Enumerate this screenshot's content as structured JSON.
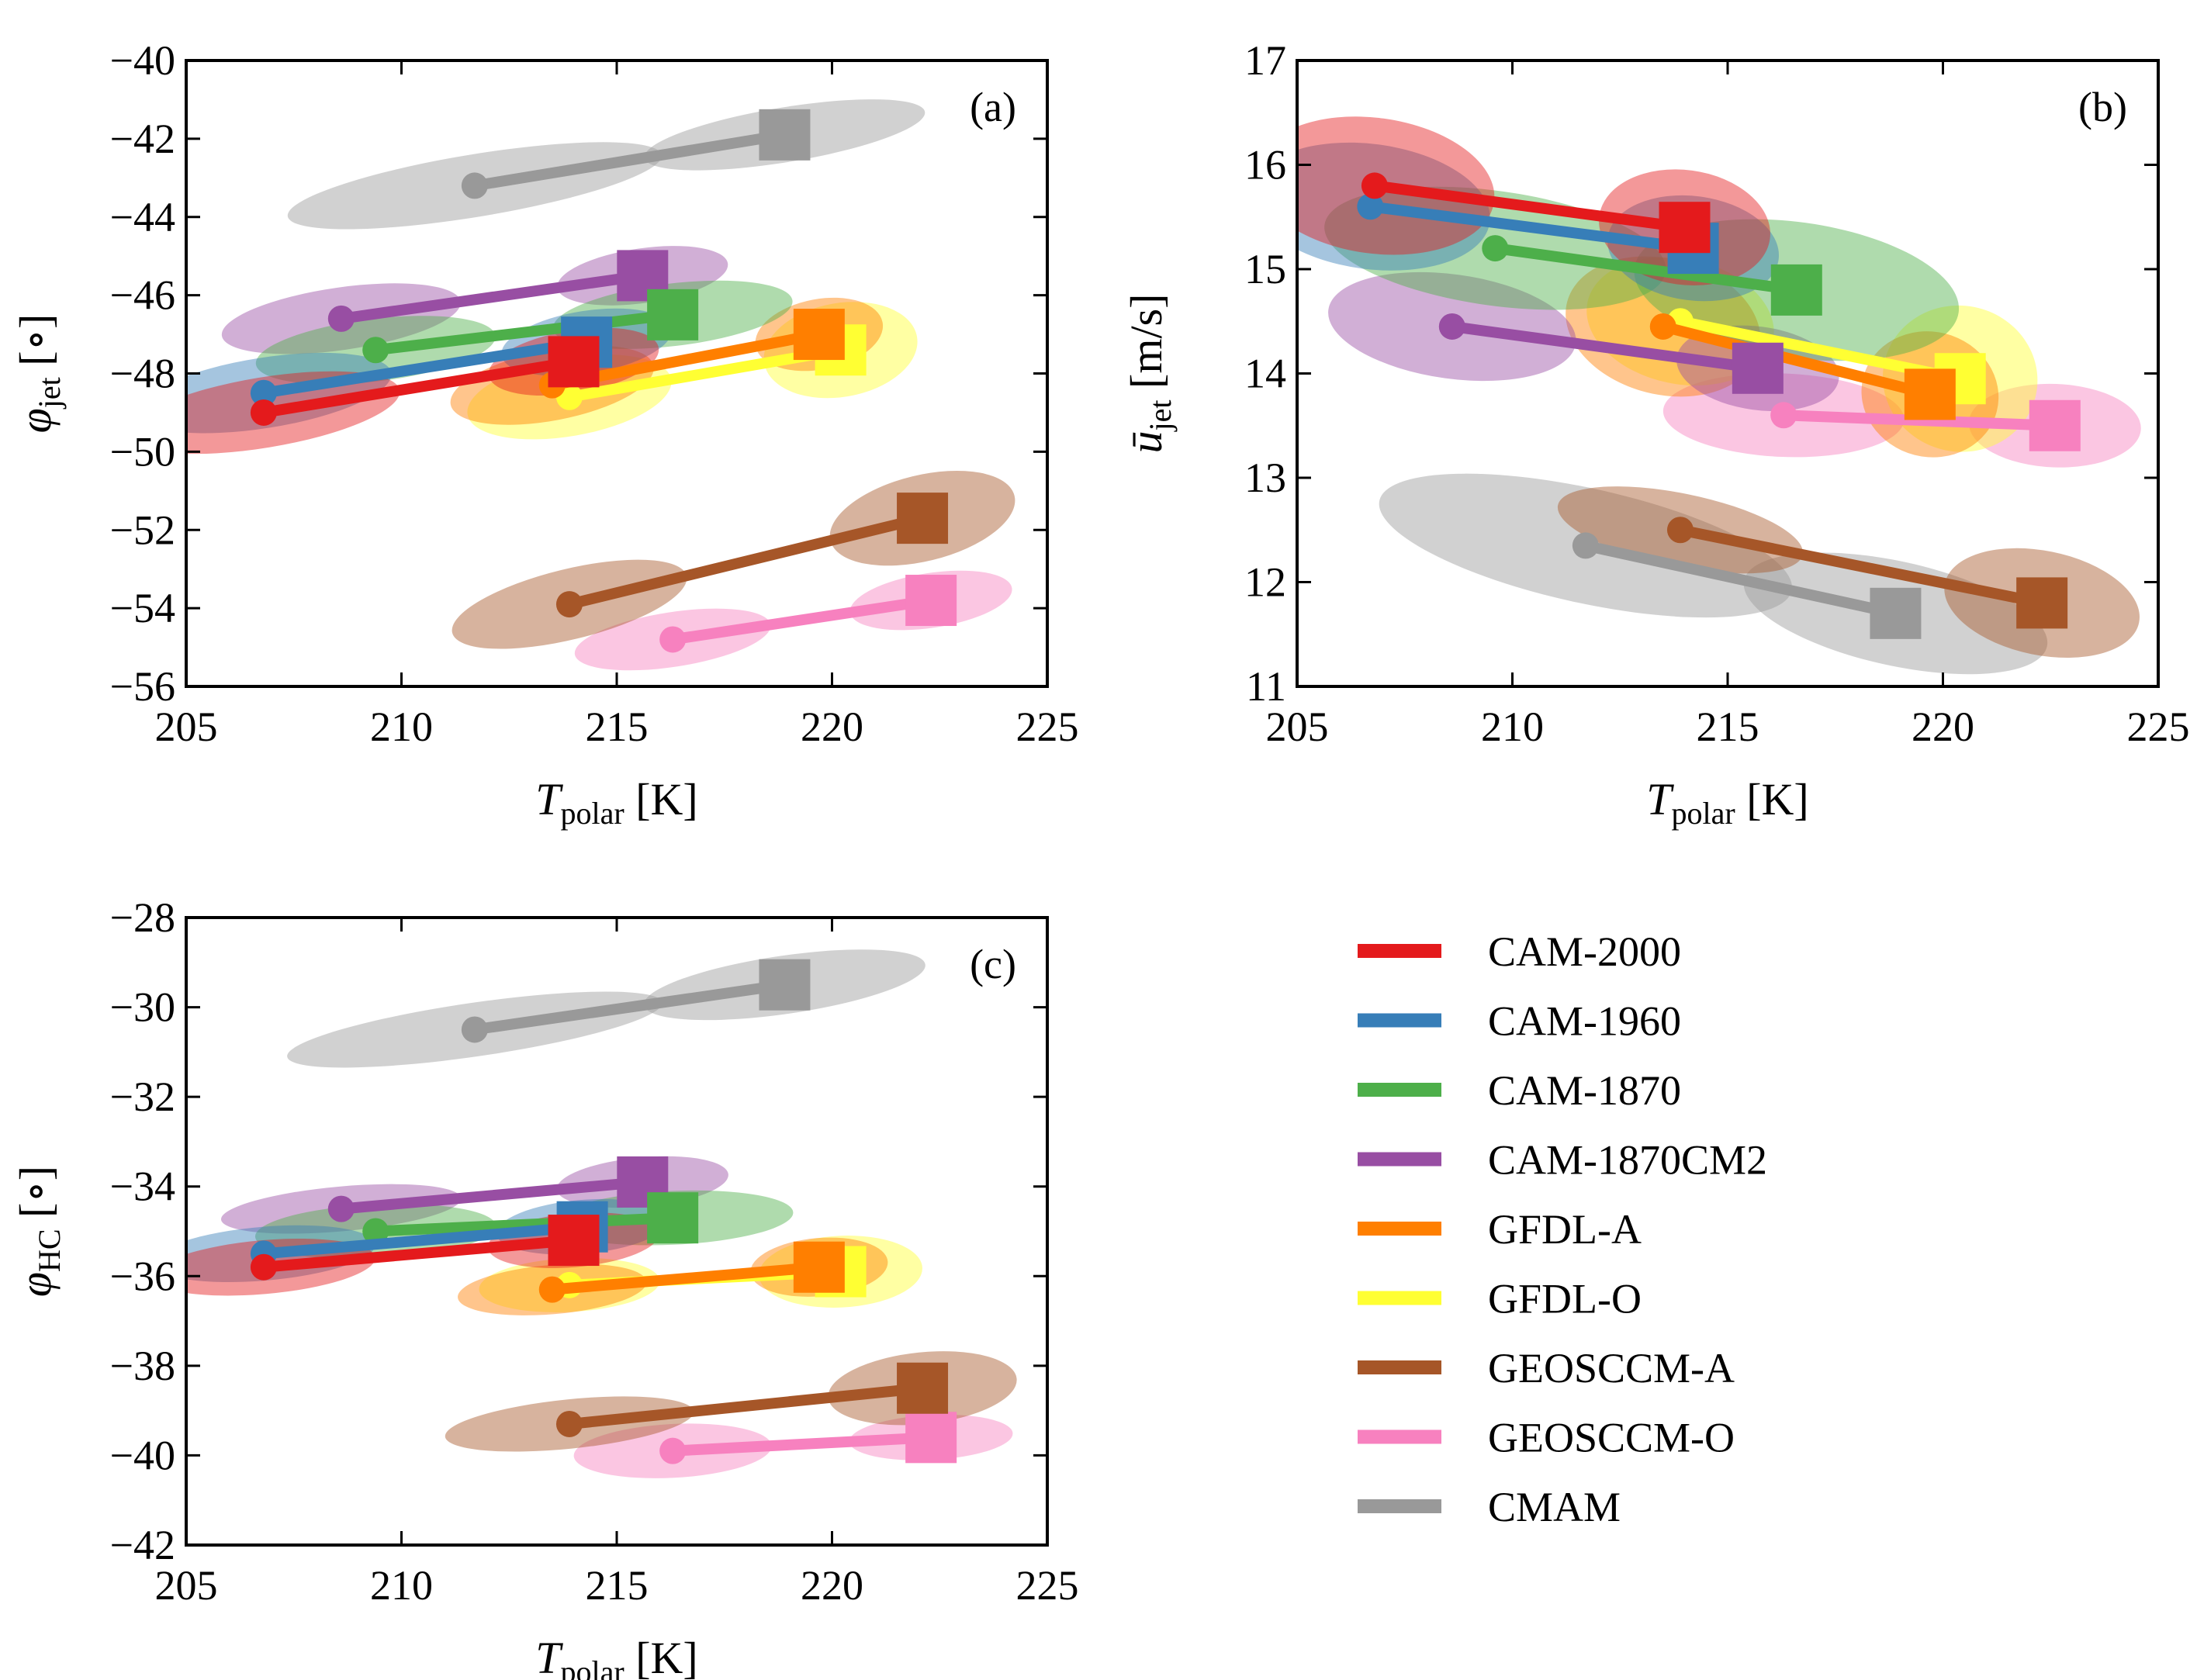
{
  "colors": {
    "CAM-2000": "#e41a1c",
    "CAM-1960": "#377eb8",
    "CAM-1870": "#4daf4a",
    "CAM-1870CM2": "#984ea3",
    "GFDL-A": "#ff7f00",
    "GFDL-O": "#ffff33",
    "GEOSCCM-A": "#a65628",
    "GEOSCCM-O": "#f781bf",
    "CMAM": "#999999"
  },
  "legend": {
    "entries": [
      "CAM-2000",
      "CAM-1960",
      "CAM-1870",
      "CAM-1870CM2",
      "GFDL-A",
      "GFDL-O",
      "GEOSCCM-A",
      "GEOSCCM-O",
      "CMAM"
    ]
  },
  "chart_data": [
    {
      "type": "scatter",
      "panel": "(a)",
      "xlabel": {
        "main": "T",
        "sub": "polar",
        "unit": "[K]"
      },
      "ylabel": {
        "main": "φ",
        "sub": "jet",
        "unit": "[∘]"
      },
      "xlim": [
        205,
        225
      ],
      "ylim": [
        -56,
        -40
      ],
      "xticks": [
        "205",
        "210",
        "215",
        "220",
        "225"
      ],
      "yticks": [
        "−56",
        "−54",
        "−52",
        "−50",
        "−48",
        "−46",
        "−44",
        "−42",
        "−40"
      ],
      "grid": false,
      "series": [
        {
          "name": "CAM-2000",
          "start": [
            206.8,
            -49.0
          ],
          "end": [
            214.0,
            -47.7
          ],
          "ellipse_start": [
            3.2,
            0.9
          ],
          "ellipse_end": [
            2.0,
            0.8
          ]
        },
        {
          "name": "CAM-1960",
          "start": [
            206.8,
            -48.5
          ],
          "end": [
            214.3,
            -47.2
          ],
          "ellipse_start": [
            3.0,
            0.9
          ],
          "ellipse_end": [
            2.0,
            0.8
          ]
        },
        {
          "name": "CAM-1870",
          "start": [
            209.4,
            -47.4
          ],
          "end": [
            216.3,
            -46.5
          ],
          "ellipse_start": [
            2.8,
            0.8
          ],
          "ellipse_end": [
            2.8,
            0.8
          ]
        },
        {
          "name": "CAM-1870CM2",
          "start": [
            208.6,
            -46.6
          ],
          "end": [
            215.6,
            -45.5
          ],
          "ellipse_start": [
            2.8,
            0.8
          ],
          "ellipse_end": [
            2.0,
            0.7
          ]
        },
        {
          "name": "GFDL-A",
          "start": [
            213.5,
            -48.3
          ],
          "end": [
            219.7,
            -47.0
          ],
          "ellipse_start": [
            2.4,
            0.9
          ],
          "ellipse_end": [
            1.5,
            0.9
          ]
        },
        {
          "name": "GFDL-O",
          "start": [
            213.9,
            -48.6
          ],
          "end": [
            220.2,
            -47.4
          ],
          "ellipse_start": [
            2.4,
            1.0
          ],
          "ellipse_end": [
            1.8,
            1.2
          ]
        },
        {
          "name": "GEOSCCM-A",
          "start": [
            213.9,
            -53.9
          ],
          "end": [
            222.1,
            -51.7
          ],
          "ellipse_start": [
            2.8,
            0.9
          ],
          "ellipse_end": [
            2.2,
            1.1
          ]
        },
        {
          "name": "GEOSCCM-O",
          "start": [
            216.3,
            -54.8
          ],
          "end": [
            222.3,
            -53.8
          ],
          "ellipse_start": [
            2.3,
            0.7
          ],
          "ellipse_end": [
            1.9,
            0.7
          ]
        },
        {
          "name": "CMAM",
          "start": [
            211.7,
            -43.2
          ],
          "end": [
            218.9,
            -41.9
          ],
          "ellipse_start": [
            4.4,
            0.8
          ],
          "ellipse_end": [
            3.3,
            0.7
          ]
        }
      ]
    },
    {
      "type": "scatter",
      "panel": "(b)",
      "xlabel": {
        "main": "T",
        "sub": "polar",
        "unit": "[K]"
      },
      "ylabel": {
        "main": "ū",
        "sub": "jet",
        "unit": "[m/s]"
      },
      "xlim": [
        205,
        225
      ],
      "ylim": [
        11,
        17
      ],
      "xticks": [
        "205",
        "210",
        "215",
        "220",
        "225"
      ],
      "yticks": [
        "11",
        "12",
        "13",
        "14",
        "15",
        "16",
        "17"
      ],
      "grid": false,
      "series": [
        {
          "name": "CAM-2000",
          "start": [
            206.8,
            15.8
          ],
          "end": [
            214.0,
            15.4
          ],
          "ellipse_start": [
            2.8,
            0.65
          ],
          "ellipse_end": [
            2.0,
            0.55
          ]
        },
        {
          "name": "CAM-1960",
          "start": [
            206.7,
            15.6
          ],
          "end": [
            214.2,
            15.2
          ],
          "ellipse_start": [
            2.8,
            0.6
          ],
          "ellipse_end": [
            2.0,
            0.5
          ]
        },
        {
          "name": "CAM-1870",
          "start": [
            209.6,
            15.2
          ],
          "end": [
            216.6,
            14.8
          ],
          "ellipse_start": [
            4.0,
            0.55
          ],
          "ellipse_end": [
            3.8,
            0.65
          ]
        },
        {
          "name": "CAM-1870CM2",
          "start": [
            208.6,
            14.45
          ],
          "end": [
            215.7,
            14.05
          ],
          "ellipse_start": [
            2.9,
            0.5
          ],
          "ellipse_end": [
            1.9,
            0.4
          ]
        },
        {
          "name": "GFDL-A",
          "start": [
            213.5,
            14.45
          ],
          "end": [
            219.7,
            13.8
          ],
          "ellipse_start": [
            2.3,
            0.65
          ],
          "ellipse_end": [
            1.6,
            0.6
          ]
        },
        {
          "name": "GFDL-O",
          "start": [
            213.9,
            14.5
          ],
          "end": [
            220.4,
            13.95
          ],
          "ellipse_start": [
            2.2,
            0.6
          ],
          "ellipse_end": [
            1.8,
            0.7
          ]
        },
        {
          "name": "GEOSCCM-A",
          "start": [
            213.9,
            12.5
          ],
          "end": [
            222.3,
            11.8
          ],
          "ellipse_start": [
            2.9,
            0.35
          ],
          "ellipse_end": [
            2.3,
            0.5
          ]
        },
        {
          "name": "GEOSCCM-O",
          "start": [
            216.3,
            13.6
          ],
          "end": [
            222.6,
            13.5
          ],
          "ellipse_start": [
            2.8,
            0.4
          ],
          "ellipse_end": [
            2.0,
            0.4
          ]
        },
        {
          "name": "CMAM",
          "start": [
            211.7,
            12.35
          ],
          "end": [
            218.9,
            11.7
          ],
          "ellipse_start": [
            4.9,
            0.55
          ],
          "ellipse_end": [
            3.6,
            0.5
          ]
        }
      ]
    },
    {
      "type": "scatter",
      "panel": "(c)",
      "xlabel": {
        "main": "T",
        "sub": "polar",
        "unit": "[K]"
      },
      "ylabel": {
        "main": "φ",
        "sub": "HC",
        "unit": "[∘]"
      },
      "xlim": [
        205,
        225
      ],
      "ylim": [
        -42,
        -28
      ],
      "xticks": [
        "205",
        "210",
        "215",
        "220",
        "225"
      ],
      "yticks": [
        "−42",
        "−40",
        "−38",
        "−36",
        "−34",
        "−32",
        "−30",
        "−28"
      ],
      "grid": false,
      "series": [
        {
          "name": "CAM-2000",
          "start": [
            206.8,
            -35.8
          ],
          "end": [
            214.0,
            -35.2
          ],
          "ellipse_start": [
            2.6,
            0.6
          ],
          "ellipse_end": [
            2.0,
            0.6
          ]
        },
        {
          "name": "CAM-1960",
          "start": [
            206.8,
            -35.5
          ],
          "end": [
            214.2,
            -34.9
          ],
          "ellipse_start": [
            2.6,
            0.6
          ],
          "ellipse_end": [
            2.0,
            0.6
          ]
        },
        {
          "name": "CAM-1870",
          "start": [
            209.4,
            -35.0
          ],
          "end": [
            216.3,
            -34.7
          ],
          "ellipse_start": [
            2.8,
            0.6
          ],
          "ellipse_end": [
            2.8,
            0.6
          ]
        },
        {
          "name": "CAM-1870CM2",
          "start": [
            208.6,
            -34.5
          ],
          "end": [
            215.6,
            -33.9
          ],
          "ellipse_start": [
            2.8,
            0.5
          ],
          "ellipse_end": [
            2.0,
            0.55
          ]
        },
        {
          "name": "GFDL-A",
          "start": [
            213.5,
            -36.3
          ],
          "end": [
            219.7,
            -35.8
          ],
          "ellipse_start": [
            2.2,
            0.55
          ],
          "ellipse_end": [
            1.6,
            0.65
          ]
        },
        {
          "name": "GFDL-O",
          "start": [
            213.9,
            -36.2
          ],
          "end": [
            220.2,
            -35.9
          ],
          "ellipse_start": [
            2.1,
            0.6
          ],
          "ellipse_end": [
            1.9,
            0.8
          ]
        },
        {
          "name": "GEOSCCM-A",
          "start": [
            213.9,
            -39.3
          ],
          "end": [
            222.1,
            -38.5
          ],
          "ellipse_start": [
            2.9,
            0.55
          ],
          "ellipse_end": [
            2.2,
            0.8
          ]
        },
        {
          "name": "GEOSCCM-O",
          "start": [
            216.3,
            -39.9
          ],
          "end": [
            222.3,
            -39.6
          ],
          "ellipse_start": [
            2.3,
            0.6
          ],
          "ellipse_end": [
            1.9,
            0.5
          ]
        },
        {
          "name": "CMAM",
          "start": [
            211.7,
            -30.5
          ],
          "end": [
            218.9,
            -29.5
          ],
          "ellipse_start": [
            4.4,
            0.6
          ],
          "ellipse_end": [
            3.3,
            0.65
          ]
        }
      ]
    }
  ]
}
